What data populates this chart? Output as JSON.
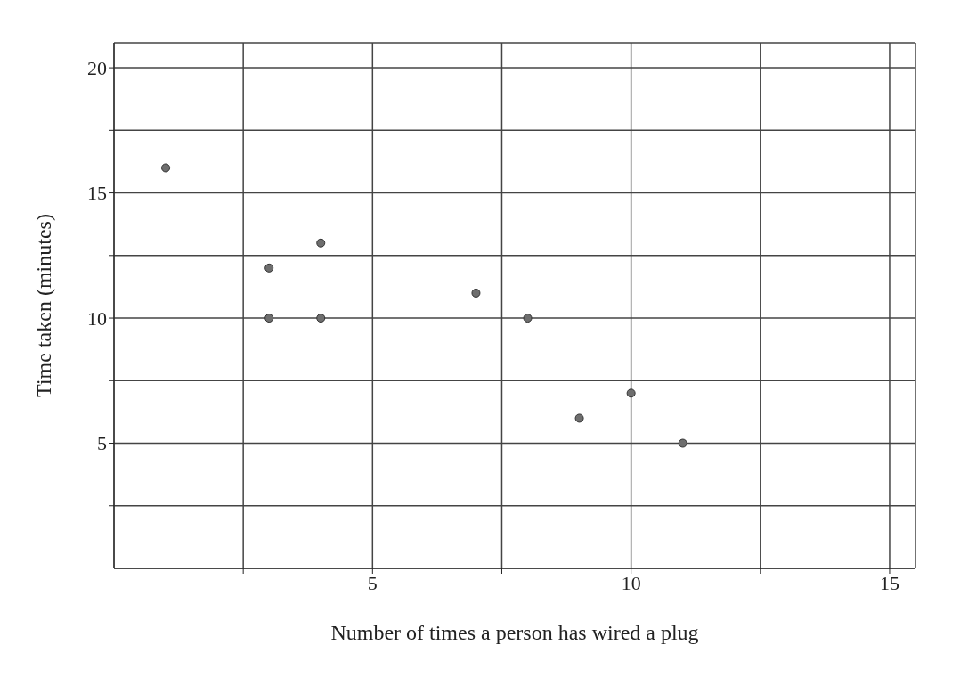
{
  "chart_data": {
    "type": "scatter",
    "xlabel": "Number of times a person has wired a plug",
    "ylabel": "Time taken (minutes)",
    "x": [
      1,
      3,
      3,
      4,
      4,
      7,
      8,
      9,
      10,
      11
    ],
    "series": [
      {
        "color": "#6e6e6e",
        "values": [
          16,
          12,
          10,
          13,
          10,
          11,
          10,
          6,
          7,
          5
        ]
      }
    ],
    "xlim": [
      0,
      15.5
    ],
    "ylim": [
      0,
      21
    ],
    "xticks": [
      {
        "value": 2.5,
        "label": null
      },
      5,
      {
        "value": 7.5,
        "label": null
      },
      10,
      {
        "value": 12.5,
        "label": null
      },
      15
    ],
    "yticks": [
      {
        "value": 2.5,
        "label": null
      },
      5,
      {
        "value": 7.5,
        "label": null
      },
      10,
      {
        "value": 12.5,
        "label": null
      },
      15,
      {
        "value": 17.5,
        "label": null
      },
      20
    ],
    "grid": true,
    "marker": "circle",
    "legend": false
  }
}
